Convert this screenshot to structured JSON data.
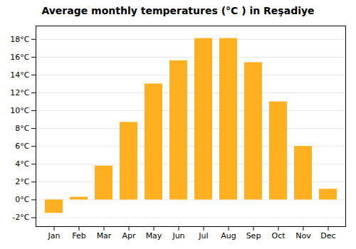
{
  "chart_data": {
    "type": "bar",
    "title": "Average monthly temperatures (°C ) in Reşadiye",
    "categories": [
      "Jan",
      "Feb",
      "Mar",
      "Apr",
      "May",
      "Jun",
      "Jul",
      "Aug",
      "Sep",
      "Oct",
      "Nov",
      "Dec"
    ],
    "values": [
      -1.5,
      0.3,
      3.8,
      8.7,
      13.0,
      15.6,
      18.1,
      18.1,
      15.4,
      11.0,
      6.0,
      1.2
    ],
    "color": "#FFB020",
    "ylim": [
      -3,
      19.5
    ],
    "yticks": [
      {
        "value": -2,
        "label": "-2°C"
      },
      {
        "value": 0,
        "label": "0°C"
      },
      {
        "value": 2,
        "label": "2°C"
      },
      {
        "value": 4,
        "label": "4°C"
      },
      {
        "value": 6,
        "label": "6°C"
      },
      {
        "value": 8,
        "label": "8°C"
      },
      {
        "value": 10,
        "label": "10°C"
      },
      {
        "value": 12,
        "label": "12°C"
      },
      {
        "value": 14,
        "label": "14°C"
      },
      {
        "value": 16,
        "label": "16°C"
      },
      {
        "value": 18,
        "label": "18°C"
      }
    ],
    "grid": true
  }
}
